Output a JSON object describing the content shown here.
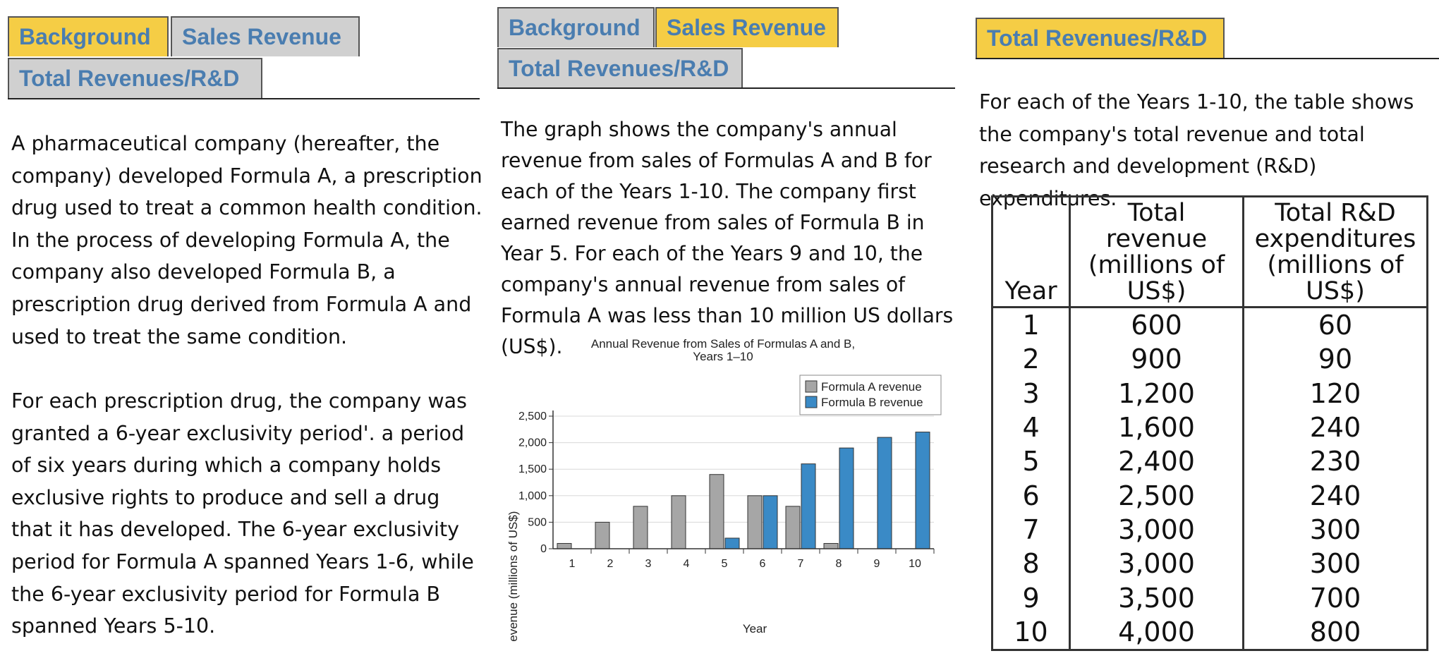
{
  "panels": [
    {
      "tabs": [
        {
          "label": "Background",
          "active": true
        },
        {
          "label": "Sales Revenue",
          "active": false
        },
        {
          "label": "Total Revenues/R&D",
          "active": false
        }
      ],
      "paragraphs": [
        "A pharmaceutical company (hereafter, the company) developed Formula A, a prescription drug used to treat a common health condition. In the process of developing Formula A, the company also developed Formula B, a prescription drug derived from Formula A and used to treat the same condition.",
        "For each prescription drug, the company was granted a 6-year exclusivity period'. a period of six years during which a company holds exclusive rights to produce and sell a drug that it has developed. The 6-year exclusivity period for Formula A spanned Years 1-6, while the 6-year exclusivity period for Formula B spanned Years 5-10."
      ]
    },
    {
      "tabs": [
        {
          "label": "Background",
          "active": false
        },
        {
          "label": "Sales Revenue",
          "active": true
        },
        {
          "label": "Total Revenues/R&D",
          "active": false
        }
      ],
      "paragraphs": [
        "The graph shows the company's annual revenue from sales of Formulas A and B for each of the Years 1-10. The company first earned revenue from sales of Formula B in Year 5. For each of the Years 9 and 10, the company's annual revenue from sales of Formula A was less than 10 million US dollars (US$)."
      ]
    },
    {
      "tabs": [
        {
          "label": "Total Revenues/R&D",
          "active": true
        }
      ],
      "paragraphs": [
        "For each of the Years 1-10, the table shows the company's total revenue and total research and development (R&D) expenditures."
      ],
      "table": {
        "headers": [
          "Year",
          "Total revenue (millions of US$)",
          "Total R&D expenditures (millions of US$)"
        ],
        "rows": [
          [
            "1",
            "600",
            "60"
          ],
          [
            "2",
            "900",
            "90"
          ],
          [
            "3",
            "1,200",
            "120"
          ],
          [
            "4",
            "1,600",
            "240"
          ],
          [
            "5",
            "2,400",
            "230"
          ],
          [
            "6",
            "2,500",
            "240"
          ],
          [
            "7",
            "3,000",
            "300"
          ],
          [
            "8",
            "3,000",
            "300"
          ],
          [
            "9",
            "3,500",
            "700"
          ],
          [
            "10",
            "4,000",
            "800"
          ]
        ]
      }
    }
  ],
  "chart_data": {
    "type": "bar",
    "title": "Annual Revenue from Sales of Formulas A and B, Years 1–10",
    "xlabel": "Year",
    "ylabel": "revenue (millions of US$)",
    "categories": [
      "1",
      "2",
      "3",
      "4",
      "5",
      "6",
      "7",
      "8",
      "9",
      "10"
    ],
    "ylim": [
      0,
      2500
    ],
    "yticks": [
      "0",
      "500",
      "1,000",
      "1,500",
      "2,000",
      "2,500"
    ],
    "ytick_values": [
      0,
      500,
      1000,
      1500,
      2000,
      2500
    ],
    "series": [
      {
        "name": "Formula A revenue",
        "color": "#a6a6a6",
        "values": [
          100,
          500,
          800,
          1000,
          1400,
          1000,
          800,
          100,
          0,
          0
        ]
      },
      {
        "name": "Formula B revenue",
        "color": "#3a8ac6",
        "values": [
          0,
          0,
          0,
          0,
          200,
          1000,
          1600,
          1900,
          2100,
          2200
        ]
      }
    ],
    "legend": "top-right",
    "grid": true
  },
  "colors": {
    "tab_active": "#f5cd45",
    "tab_inactive": "#d0d0d0",
    "tab_text": "#4a7db0"
  }
}
